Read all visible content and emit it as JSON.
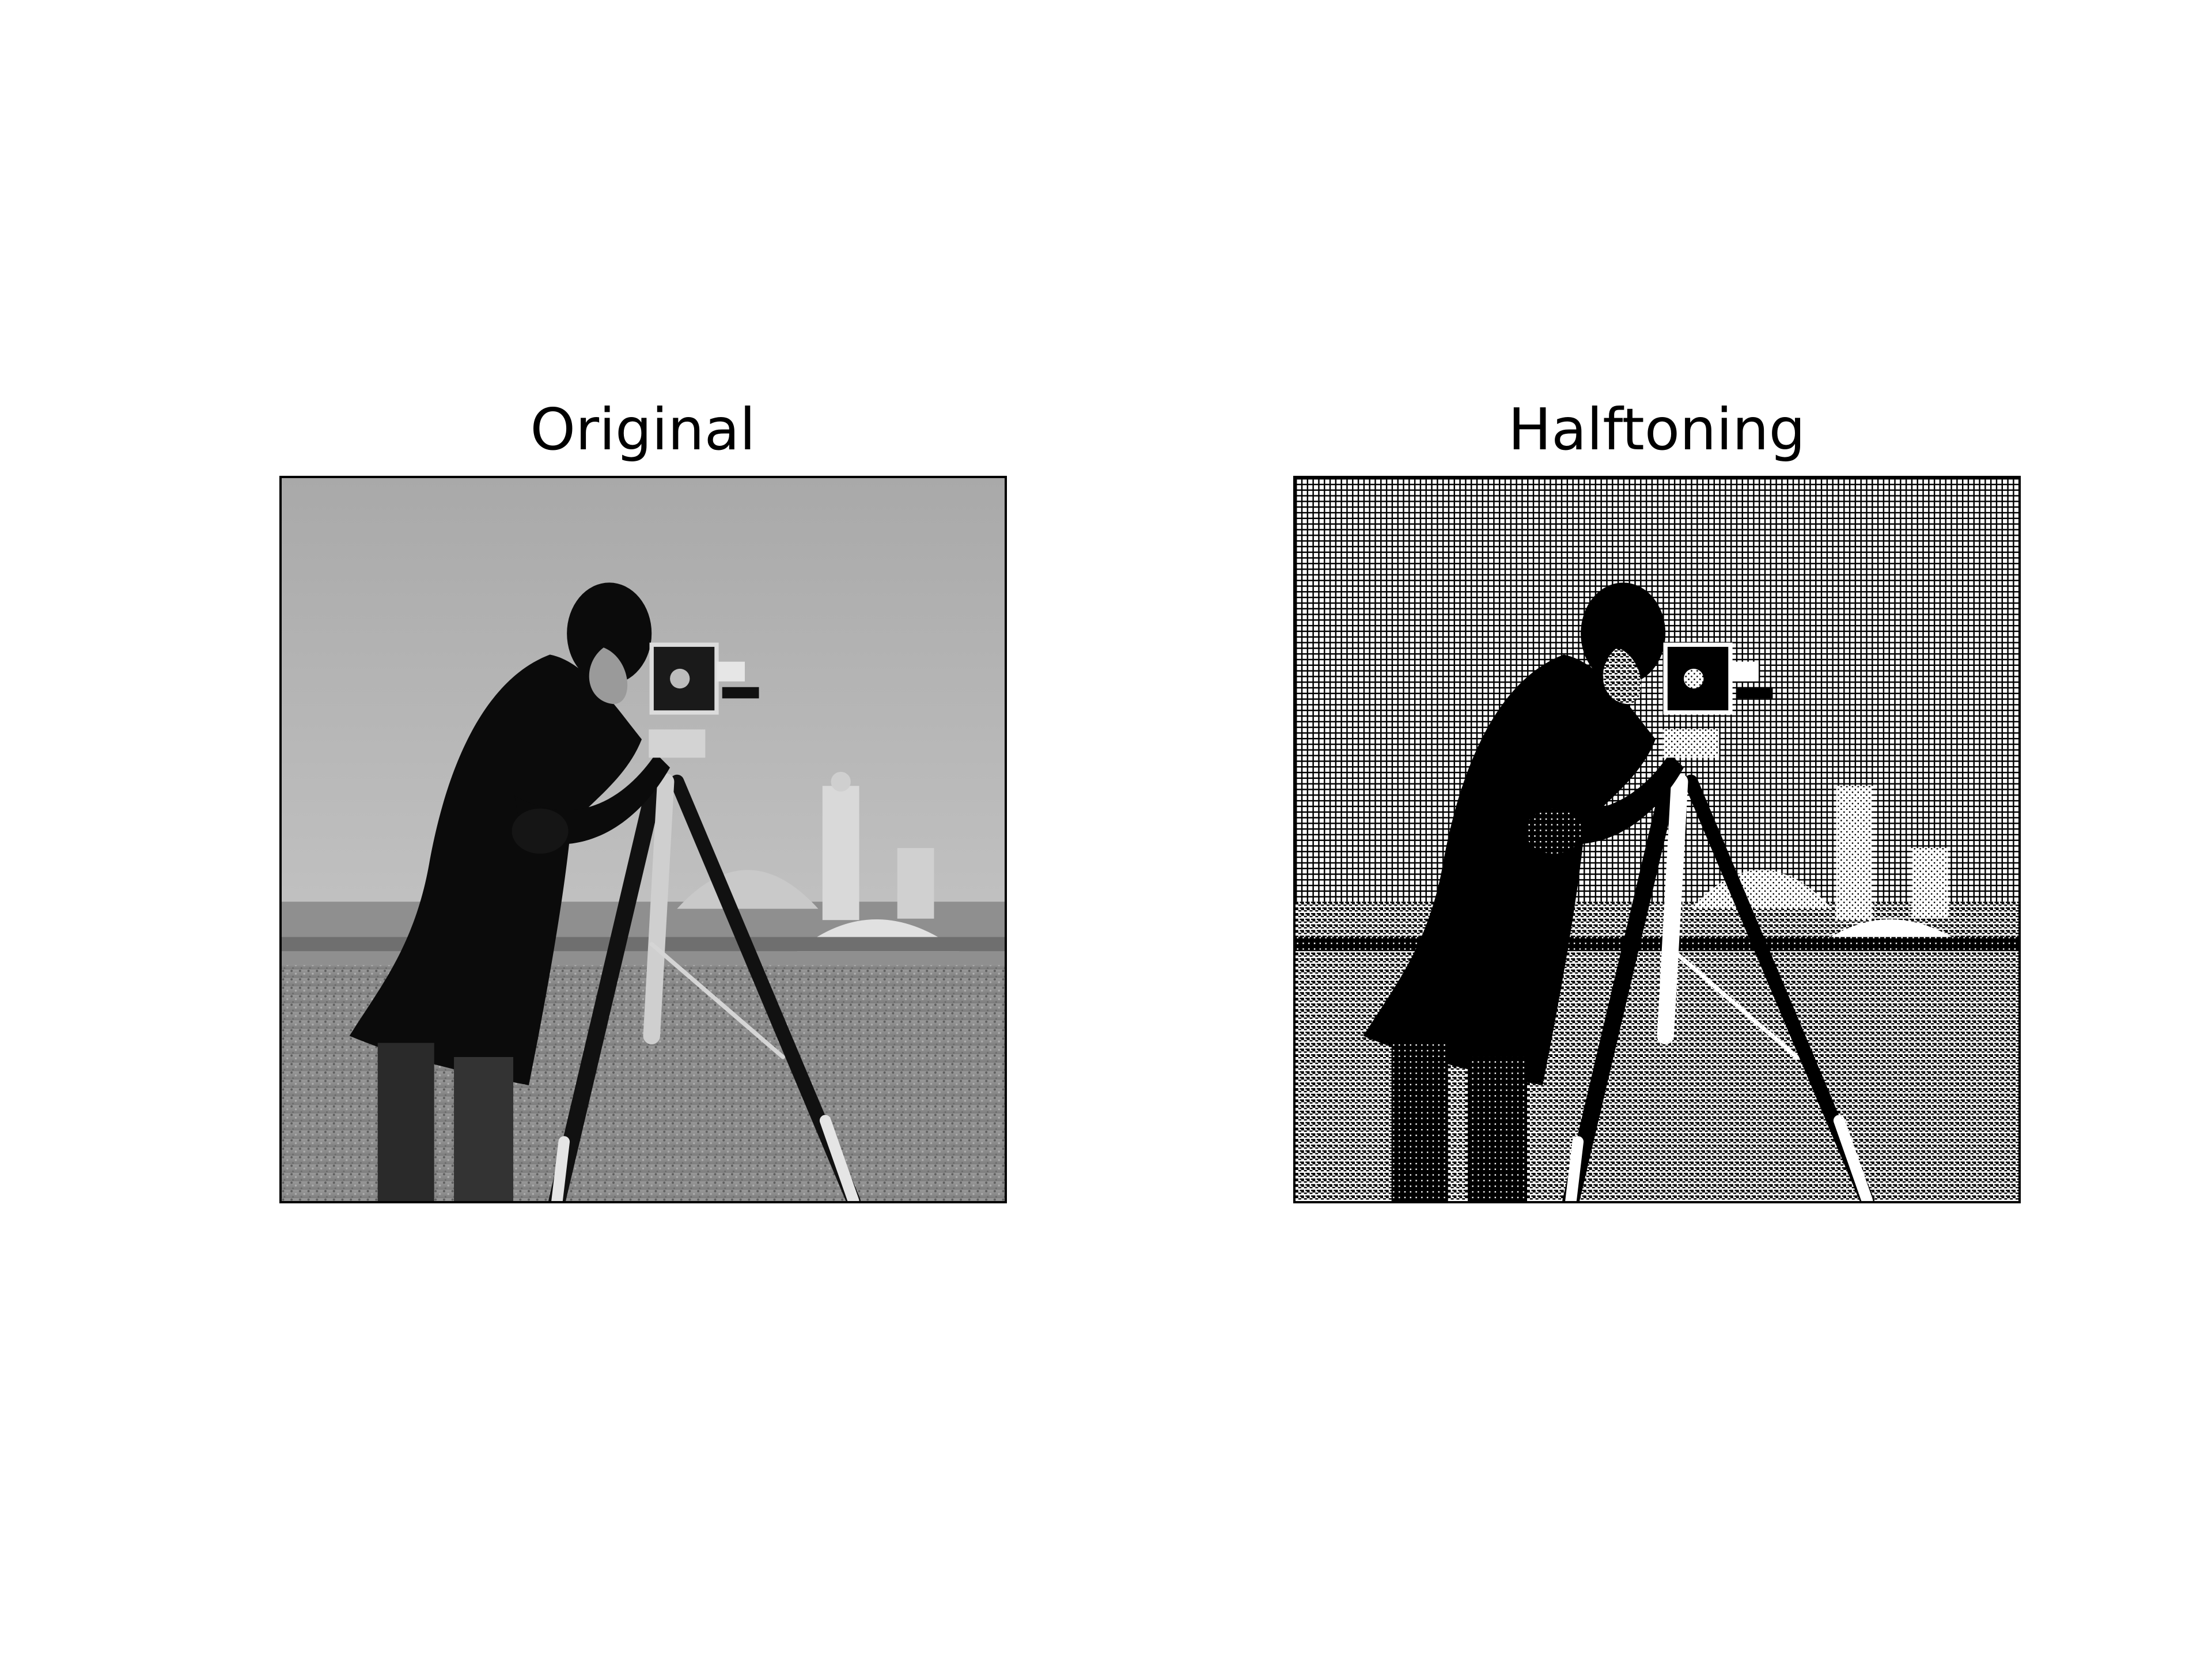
{
  "figure": {
    "panels": [
      {
        "title": "Original"
      },
      {
        "title": "Halftoning"
      }
    ]
  },
  "colors": {
    "background": "#ffffff",
    "frame": "#000000",
    "sky": "#b5b5b5",
    "field": "#8a8a8a",
    "subject": "#0b0b0b"
  }
}
